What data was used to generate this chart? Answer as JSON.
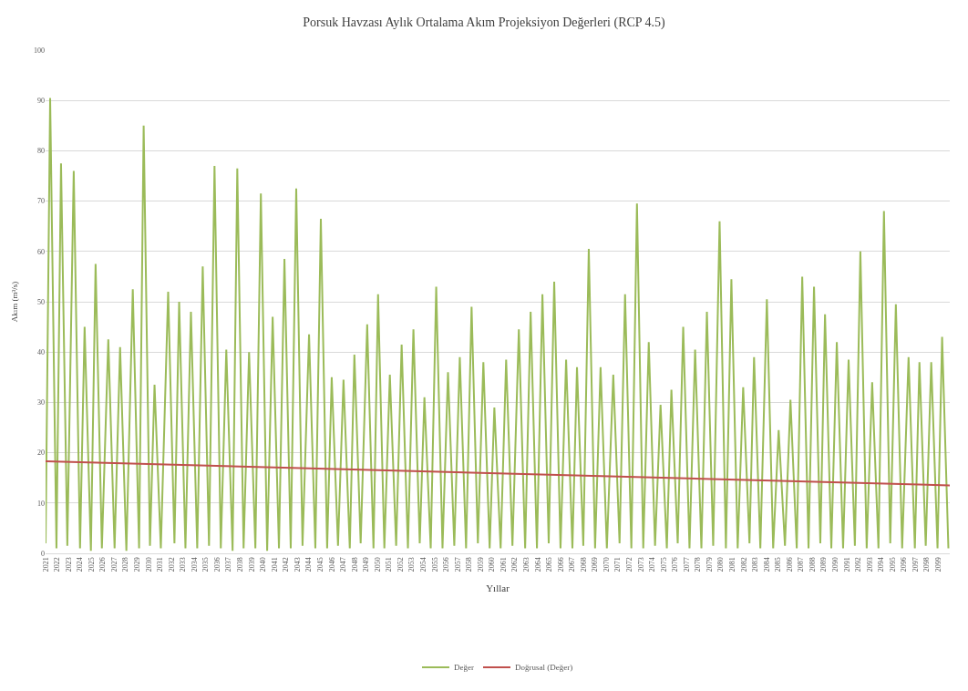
{
  "chart_data": {
    "type": "line",
    "title": "Porsuk Havzası Aylık Ortalama Akım Projeksiyon Değerleri (RCP 4.5)",
    "xlabel": "Yıllar",
    "ylabel": "Akım (m³/s)",
    "xlim": [
      2021,
      2100
    ],
    "xticks": [
      2021,
      2022,
      2023,
      2024,
      2025,
      2026,
      2027,
      2028,
      2029,
      2030,
      2031,
      2032,
      2033,
      2034,
      2035,
      2036,
      2037,
      2038,
      2039,
      2040,
      2041,
      2042,
      2043,
      2044,
      2045,
      2046,
      2047,
      2048,
      2049,
      2050,
      2051,
      2052,
      2053,
      2054,
      2055,
      2056,
      2057,
      2058,
      2059,
      2060,
      2061,
      2062,
      2063,
      2064,
      2065,
      2066,
      2067,
      2068,
      2069,
      2070,
      2071,
      2072,
      2073,
      2074,
      2075,
      2076,
      2077,
      2078,
      2079,
      2080,
      2081,
      2082,
      2083,
      2084,
      2085,
      2086,
      2087,
      2088,
      2089,
      2090,
      2091,
      2092,
      2093,
      2094,
      2095,
      2096,
      2097,
      2098,
      2099
    ],
    "ylim": [
      0,
      100
    ],
    "yticks": [
      0,
      10,
      20,
      30,
      40,
      50,
      60,
      70,
      80,
      90,
      100
    ],
    "grid": "y",
    "legend": "bottom",
    "series": [
      {
        "name": "Değer",
        "color": "#9bbb59",
        "x": [
          2021.0,
          2021.4,
          2021.95,
          2022.35,
          2022.9,
          2023.46,
          2024.01,
          2024.41,
          2024.96,
          2025.37,
          2025.92,
          2026.48,
          2027.03,
          2027.51,
          2028.06,
          2028.62,
          2029.17,
          2029.57,
          2030.12,
          2030.52,
          2031.07,
          2031.71,
          2032.26,
          2032.67,
          2033.22,
          2033.7,
          2034.25,
          2034.73,
          2035.28,
          2035.76,
          2036.31,
          2036.79,
          2037.34,
          2037.75,
          2038.3,
          2038.78,
          2039.33,
          2039.81,
          2040.36,
          2040.84,
          2041.39,
          2041.87,
          2042.42,
          2042.9,
          2043.45,
          2044.02,
          2044.57,
          2045.05,
          2045.6,
          2046.0,
          2046.55,
          2047.03,
          2047.58,
          2047.98,
          2048.53,
          2049.1,
          2049.65,
          2050.05,
          2050.6,
          2051.08,
          2051.63,
          2052.11,
          2052.66,
          2053.14,
          2053.69,
          2054.1,
          2054.65,
          2055.13,
          2055.68,
          2056.16,
          2056.71,
          2057.19,
          2057.74,
          2058.22,
          2058.77,
          2059.25,
          2059.8,
          2060.21,
          2060.76,
          2061.24,
          2061.79,
          2062.35,
          2062.9,
          2063.38,
          2063.93,
          2064.41,
          2064.96,
          2065.44,
          2065.99,
          2066.48,
          2067.03,
          2067.43,
          2067.98,
          2068.46,
          2069.01,
          2069.49,
          2070.04,
          2070.6,
          2071.15,
          2071.63,
          2072.18,
          2072.67,
          2073.22,
          2073.7,
          2074.25,
          2074.73,
          2075.28,
          2075.68,
          2076.23,
          2076.71,
          2077.26,
          2077.75,
          2078.3,
          2078.78,
          2079.33,
          2079.89,
          2080.44,
          2080.92,
          2081.47,
          2081.95,
          2082.5,
          2082.9,
          2083.45,
          2084.02,
          2084.57,
          2085.05,
          2085.6,
          2086.08,
          2086.63,
          2087.11,
          2087.66,
          2088.14,
          2088.69,
          2089.1,
          2089.65,
          2090.13,
          2090.68,
          2091.16,
          2091.71,
          2092.19,
          2092.74,
          2093.22,
          2093.77,
          2094.25,
          2094.8,
          2095.29,
          2095.84,
          2096.4,
          2096.95,
          2097.35,
          2097.9,
          2098.38,
          2098.93,
          2099.33,
          2099.88
        ],
        "values": [
          2,
          90.5,
          1,
          77.5,
          1.5,
          76,
          1,
          45,
          0.5,
          57.5,
          1,
          42.5,
          1,
          41,
          0.5,
          52.5,
          1,
          85,
          1.5,
          33.5,
          1,
          52,
          2,
          50,
          1,
          48,
          1,
          57,
          1.5,
          77,
          1,
          40.5,
          0.5,
          76.5,
          1,
          40,
          1,
          71.5,
          0.5,
          47,
          1,
          58.5,
          1,
          72.5,
          1.5,
          43.5,
          1,
          66.5,
          1,
          35,
          1.5,
          34.5,
          1,
          39.5,
          2,
          45.5,
          1,
          51.5,
          1,
          35.5,
          1.5,
          41.5,
          1,
          44.5,
          2,
          31,
          1,
          53,
          1,
          36,
          1.5,
          39,
          1,
          49,
          2,
          38,
          1,
          29,
          1,
          38.5,
          1.5,
          44.5,
          1,
          48,
          1,
          51.5,
          2,
          54,
          1,
          38.5,
          1,
          37,
          1.5,
          60.5,
          1,
          37,
          1,
          35.5,
          2,
          51.5,
          1,
          69.5,
          1,
          42,
          1.5,
          29.5,
          1,
          32.5,
          2,
          45,
          1,
          40.5,
          1,
          48,
          1.5,
          66,
          1,
          54.5,
          1,
          33,
          2,
          39,
          1,
          50.5,
          1,
          24.5,
          1.5,
          30.5,
          1,
          55,
          1,
          53,
          2,
          47.5,
          1,
          42,
          1,
          38.5,
          1.5,
          60,
          1,
          34,
          1,
          68,
          2,
          49.5,
          1,
          39,
          1,
          38,
          1.5,
          38,
          1,
          43,
          1
        ]
      },
      {
        "name": "Doğrusal (Değer)",
        "color": "#c0504d",
        "x": [
          2021,
          2100
        ],
        "values": [
          18.3,
          13.5
        ]
      }
    ]
  }
}
